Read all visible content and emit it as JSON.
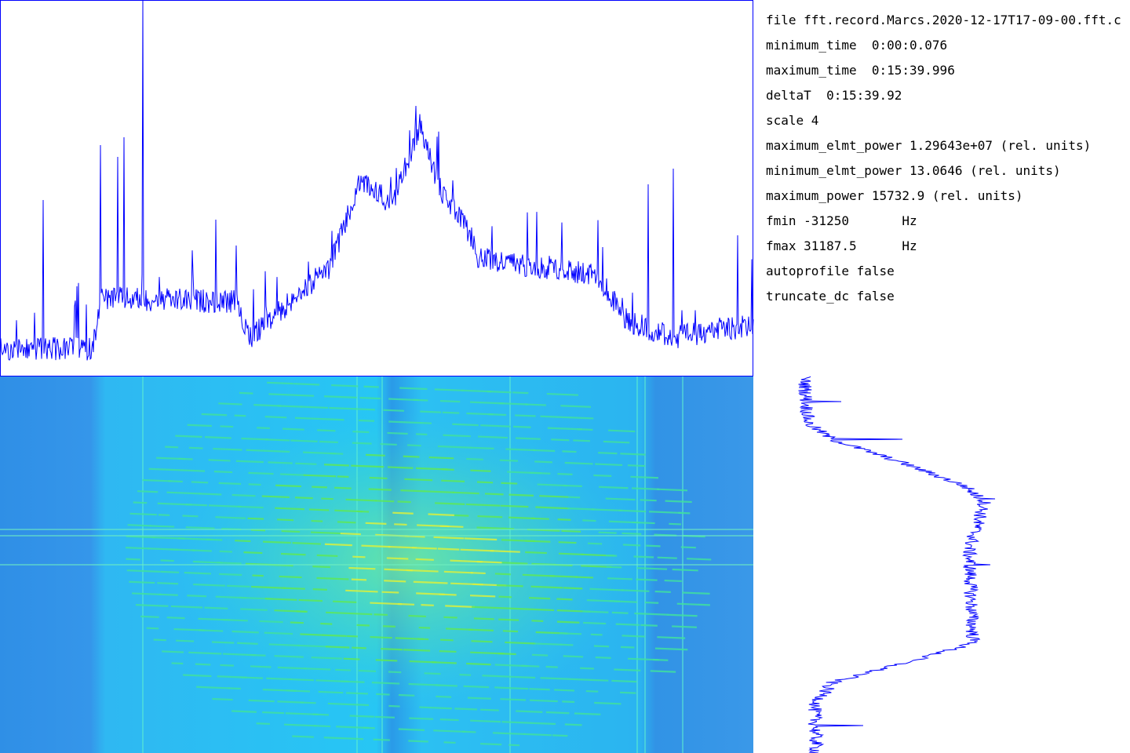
{
  "info": {
    "lines": [
      "file fft.record.Marcs.2020-12-17T17-09-00.fft.c",
      "minimum_time  0:00:0.076",
      "maximum_time  0:15:39.996",
      "deltaT  0:15:39.92",
      "scale 4",
      "maximum_elmt_power 1.29643e+07 (rel. units)",
      "minimum_elmt_power 13.0646 (rel. units)",
      "maximum_power 15732.9 (rel. units)",
      "fmin -31250       Hz",
      "fmax 31187.5      Hz",
      "autoprofile false",
      "truncate_dc false"
    ]
  }
}
